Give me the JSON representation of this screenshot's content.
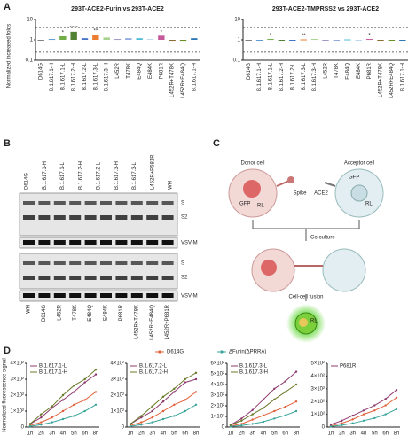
{
  "panel_labels": [
    "A",
    "B",
    "C",
    "D"
  ],
  "chart_data": [
    {
      "type": "bar",
      "title": "293T-ACE2-Furin vs 293T-ACE2",
      "y_label": "Normalized increased folds",
      "log_y": true,
      "categories": [
        "D614G",
        "B.1.617.1-H",
        "B.1.617.1-L",
        "B.1.617.2-H",
        "B.1.617.2-L",
        "B.1.617.3-L",
        "B.1.617.3-H",
        "L452R",
        "T478K",
        "E484Q",
        "E484K",
        "P681R",
        "L452R+T478K",
        "L452R+E484Q",
        "B.1.617.1-H"
      ],
      "values": [
        1,
        1.1,
        1.5,
        2.5,
        1.2,
        1.8,
        1.3,
        1.1,
        1.2,
        1.2,
        1.1,
        1.6,
        0.9,
        0.9,
        1.2
      ],
      "colors": [
        "#7f7f7f",
        "#5b9bd5",
        "#70ad47",
        "#548235",
        "#4472c4",
        "#ed7d31",
        "#a9d18e",
        "#9e9ac8",
        "#8faadc",
        "#4dbbd5",
        "#bdd7ee",
        "#c55a9a",
        "#8c6d31",
        "#6b8e23",
        "#2e75b6"
      ],
      "significance": [
        null,
        null,
        "*",
        "****",
        null,
        "**",
        null,
        null,
        null,
        null,
        null,
        "*",
        null,
        null,
        null
      ],
      "reference_lines": [
        4,
        0.25
      ],
      "ylim": [
        0.1,
        10
      ],
      "yticks": [
        0.1,
        1,
        10
      ]
    },
    {
      "type": "bar",
      "title": "293T-ACE2-TMPRSS2 vs 293T-ACE2",
      "log_y": true,
      "categories": [
        "D614G",
        "B.1.617.1-H",
        "B.1.617.1-L",
        "B.1.617.2-H",
        "B.1.617.2-L",
        "B.1.617.3-L",
        "B.1.617.3-H",
        "L452R",
        "T478K",
        "E484Q",
        "E484K",
        "P681R",
        "L452R+T478K",
        "L452R+E484Q",
        "B.1.617.1-H"
      ],
      "values": [
        1,
        1,
        1.1,
        1,
        1,
        1.05,
        1.1,
        1,
        1,
        1.05,
        1,
        1.1,
        1,
        1,
        1
      ],
      "colors": [
        "#7f7f7f",
        "#5b9bd5",
        "#70ad47",
        "#548235",
        "#4472c4",
        "#ed7d31",
        "#a9d18e",
        "#9e9ac8",
        "#8faadc",
        "#4dbbd5",
        "#bdd7ee",
        "#c55a9a",
        "#8c6d31",
        "#6b8e23",
        "#2e75b6"
      ],
      "significance": [
        null,
        null,
        "*",
        null,
        null,
        "**",
        null,
        null,
        null,
        null,
        null,
        "*",
        null,
        null,
        null
      ],
      "reference_lines": [
        4,
        0.25
      ],
      "ylim": [
        0.1,
        10
      ],
      "yticks": [
        0.1,
        1,
        10
      ]
    },
    {
      "type": "line",
      "categories": [
        "1h",
        "2h",
        "3h",
        "4h",
        "5h",
        "6h",
        "8h"
      ],
      "series": [
        {
          "name": "B.1.617.1-L",
          "color": "#8e3a6e",
          "values": [
            20,
            60,
            120,
            170,
            220,
            280,
            330
          ]
        },
        {
          "name": "B.1.617.1-H",
          "color": "#6b7a2a",
          "values": [
            20,
            80,
            130,
            200,
            260,
            300,
            360
          ]
        }
      ],
      "shared_values": [
        [
          10,
          30,
          60,
          100,
          140,
          170,
          220
        ],
        [
          5,
          15,
          30,
          50,
          70,
          100,
          140
        ]
      ],
      "ylim": [
        0,
        400
      ],
      "yticks": [
        0,
        {
          "value": 100,
          "label": "1×10²"
        },
        {
          "value": 200,
          "label": "2×10²"
        },
        {
          "value": 300,
          "label": "3×10²"
        },
        {
          "value": 400,
          "label": "4×10²"
        }
      ]
    },
    {
      "type": "line",
      "categories": [
        "1h",
        "2h",
        "3h",
        "4h",
        "5h",
        "6h",
        "8h"
      ],
      "series": [
        {
          "name": "B.1.617.2-L",
          "color": "#8e3a6e",
          "values": [
            20,
            60,
            100,
            160,
            220,
            280,
            300
          ]
        },
        {
          "name": "B.1.617.2-H",
          "color": "#6b7a2a",
          "values": [
            20,
            70,
            130,
            190,
            240,
            300,
            340
          ]
        }
      ],
      "shared_values": [
        [
          10,
          30,
          60,
          100,
          140,
          170,
          220
        ],
        [
          5,
          15,
          30,
          50,
          70,
          100,
          140
        ]
      ],
      "ylim": [
        0,
        400
      ],
      "yticks": [
        0,
        {
          "value": 100,
          "label": "1×10²"
        },
        {
          "value": 200,
          "label": "2×10²"
        },
        {
          "value": 300,
          "label": "3×10²"
        },
        {
          "value": 400,
          "label": "4×10²"
        }
      ]
    },
    {
      "type": "line",
      "categories": [
        "1h",
        "2h",
        "3h",
        "4h",
        "5h",
        "6h",
        "8h"
      ],
      "series": [
        {
          "name": "B.1.617.3-L",
          "color": "#8e3a6e",
          "values": [
            20,
            80,
            160,
            260,
            360,
            430,
            520
          ]
        },
        {
          "name": "B.1.617.3-H",
          "color": "#6b7a2a",
          "values": [
            20,
            60,
            120,
            180,
            260,
            330,
            400
          ]
        }
      ],
      "shared_values": [
        [
          10,
          30,
          70,
          110,
          150,
          190,
          240
        ],
        [
          5,
          15,
          30,
          50,
          80,
          110,
          150
        ]
      ],
      "ylim": [
        0,
        600
      ],
      "yticks": [
        0,
        {
          "value": 100,
          "label": "1×10²"
        },
        {
          "value": 200,
          "label": "2×10²"
        },
        {
          "value": 300,
          "label": "3×10²"
        },
        {
          "value": 400,
          "label": "4×10²"
        },
        {
          "value": 500,
          "label": "5×10²"
        },
        {
          "value": 600,
          "label": "6×10²"
        }
      ]
    },
    {
      "type": "line",
      "categories": [
        "1h",
        "2h",
        "3h",
        "4h",
        "5h",
        "6h",
        "8h"
      ],
      "series": [
        {
          "name": "P681R",
          "color": "#8e3a6e",
          "values": [
            20,
            50,
            90,
            130,
            170,
            220,
            290
          ]
        }
      ],
      "shared_values": [
        [
          10,
          30,
          60,
          100,
          130,
          170,
          230
        ],
        [
          5,
          15,
          30,
          50,
          70,
          100,
          140
        ]
      ],
      "ylim": [
        0,
        500
      ],
      "yticks": [
        0,
        {
          "value": 100,
          "label": "1×10²"
        },
        {
          "value": 200,
          "label": "2×10²"
        },
        {
          "value": 300,
          "label": "3×10²"
        },
        {
          "value": 400,
          "label": "4×10²"
        },
        {
          "value": 500,
          "label": "5×10²"
        }
      ]
    }
  ],
  "panel_d_legend": [
    {
      "name": "D614G",
      "color": "#e0603a"
    },
    {
      "name": "ΔFurin(ΔPRRA)",
      "color": "#3aa59a"
    }
  ],
  "panel_d_ylabel": "Normalized fluorescence signal",
  "blot": {
    "top_lanes": [
      "D614G",
      "B.1.617.1-H",
      "B.1.617.1-L",
      "B.1.617.2-H",
      "B.1.617.2-L",
      "B.1.617.3-H",
      "B.1.617.3-L",
      "L452R+P681R",
      "WH"
    ],
    "bottom_lanes": [
      "WH",
      "D614G",
      "L452R",
      "T478K",
      "E484Q",
      "E484K",
      "P681R",
      "L452R+T478K",
      "L452R+E484Q",
      "L452R+P681R"
    ],
    "upper_bands": [
      "S",
      "S2",
      "VSV-M"
    ],
    "lower_bands": [
      "S",
      "S2",
      "VSV-M"
    ]
  },
  "diagram": {
    "donor": "Donor cell",
    "acceptor": "Acceptor cell",
    "spike": "Spike",
    "ace2": "ACE2",
    "gfp_donor": "GFP",
    "rl_donor": "RL",
    "gfp_acceptor": "GFP",
    "rl_acceptor": "RL",
    "coculture": "Co-culture",
    "fusion": "Cell-cell fusion",
    "rl_fusion": "RL"
  }
}
